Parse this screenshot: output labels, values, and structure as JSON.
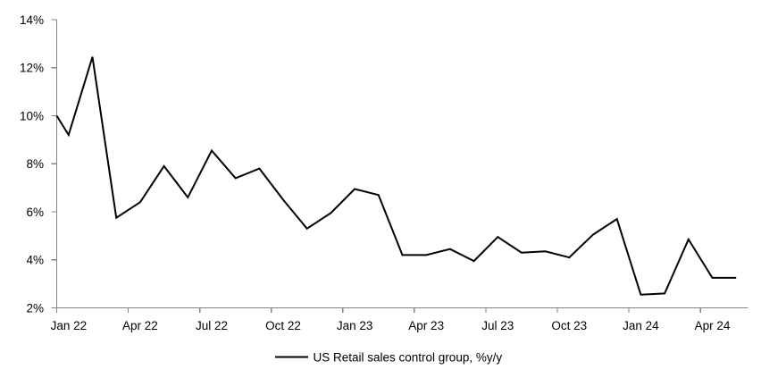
{
  "chart_data": {
    "type": "line",
    "title": "",
    "categories": [
      "Jan 22",
      "Feb 22",
      "Mar 22",
      "Apr 22",
      "May 22",
      "Jun 22",
      "Jul 22",
      "Aug 22",
      "Sep 22",
      "Oct 22",
      "Nov 22",
      "Dec 22",
      "Jan 23",
      "Feb 23",
      "Mar 23",
      "Apr 23",
      "May 23",
      "Jun 23",
      "Jul 23",
      "Aug 23",
      "Sep 23",
      "Oct 23",
      "Nov 23",
      "Dec 23",
      "Jan 24",
      "Feb 24",
      "Mar 24",
      "Apr 24",
      "May 24"
    ],
    "series": [
      {
        "name": "US Retail sales control group, %y/y",
        "color": "#000000",
        "values": [
          9.2,
          12.45,
          5.75,
          6.4,
          7.9,
          6.6,
          8.55,
          7.4,
          7.8,
          6.5,
          5.3,
          5.95,
          6.95,
          6.7,
          4.2,
          4.2,
          4.45,
          3.95,
          4.95,
          4.3,
          4.35,
          4.1,
          5.05,
          5.7,
          2.55,
          2.6,
          4.85,
          3.25,
          3.25
        ]
      }
    ],
    "lead_in_at_axis": 10.0,
    "ylim": [
      2,
      14
    ],
    "y_tick_labels": [
      "2%",
      "4%",
      "6%",
      "8%",
      "10%",
      "12%",
      "14%"
    ],
    "x_tick_labels": [
      "Jan 22",
      "Apr 22",
      "Jul 22",
      "Oct 22",
      "Jan 23",
      "Apr 23",
      "Jul 23",
      "Oct 23",
      "Jan 24",
      "Apr 24"
    ],
    "x_label_every": 3,
    "grid": false,
    "legend_position": "bottom-center",
    "axis_color": "#848484",
    "text_color": "#000000"
  },
  "legend": {
    "label": "US Retail sales control group, %y/y"
  }
}
